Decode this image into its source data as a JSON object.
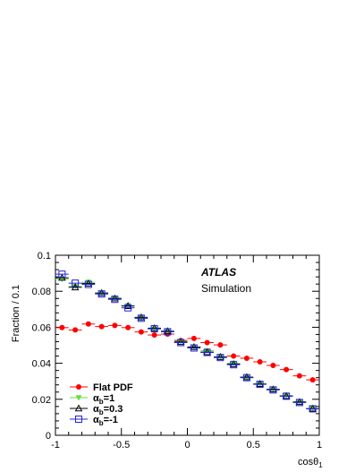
{
  "chart_data": {
    "type": "scatter",
    "xlabel": "cosθ",
    "xlabel_sub": "1",
    "ylabel": "Fraction / 0.1",
    "xlim": [
      -1,
      1
    ],
    "ylim": [
      0,
      0.1
    ],
    "x_ticks": [
      "-1",
      "-0.5",
      "0",
      "0.5",
      "1"
    ],
    "x_tick_values": [
      -1,
      -0.5,
      0,
      0.5,
      1
    ],
    "y_ticks": [
      "0",
      "0.02",
      "0.04",
      "0.06",
      "0.08",
      "0.1"
    ],
    "y_tick_values": [
      0,
      0.02,
      0.04,
      0.06,
      0.08,
      0.1
    ],
    "annotations": {
      "experiment": "ATLAS",
      "label": "Simulation"
    },
    "legend_placement": "bottom-left",
    "x": [
      -0.95,
      -0.85,
      -0.75,
      -0.65,
      -0.55,
      -0.45,
      -0.35,
      -0.25,
      -0.15,
      -0.05,
      0.05,
      0.15,
      0.25,
      0.35,
      0.45,
      0.55,
      0.65,
      0.75,
      0.85,
      0.95
    ],
    "series": [
      {
        "name": "Flat PDF",
        "legend_label": "Flat PDF",
        "marker": "circle",
        "color": "#ff0000",
        "values": [
          0.0598,
          0.0585,
          0.0618,
          0.0604,
          0.061,
          0.0598,
          0.0574,
          0.0557,
          0.0562,
          0.0527,
          0.0538,
          0.0515,
          0.0502,
          0.044,
          0.0428,
          0.0408,
          0.0388,
          0.0365,
          0.033,
          0.0308
        ]
      },
      {
        "name": "αb=1",
        "legend_label": "α",
        "legend_sub": "b",
        "legend_suffix": "=1",
        "marker": "triangle-down",
        "color": "#66dd44",
        "values": [
          0.0868,
          0.0827,
          0.085,
          0.079,
          0.0762,
          0.072,
          0.065,
          0.059,
          0.0575,
          0.0522,
          0.049,
          0.047,
          0.0435,
          0.04,
          0.032,
          0.0285,
          0.0255,
          0.022,
          0.0185,
          0.0148
        ]
      },
      {
        "name": "αb=0.3",
        "legend_label": "α",
        "legend_sub": "b",
        "legend_suffix": "=0.3",
        "marker": "triangle-up",
        "color": "#000000",
        "values": [
          0.0875,
          0.0822,
          0.0843,
          0.079,
          0.076,
          0.0718,
          0.0655,
          0.0595,
          0.0578,
          0.0518,
          0.049,
          0.0462,
          0.0435,
          0.0395,
          0.0323,
          0.0285,
          0.0255,
          0.0218,
          0.0185,
          0.0148
        ]
      },
      {
        "name": "αb=-1",
        "legend_label": "α",
        "legend_sub": "b",
        "legend_suffix": "=-1",
        "marker": "square-open",
        "color": "#2222dd",
        "values": [
          0.0895,
          0.0845,
          0.0838,
          0.0785,
          0.0755,
          0.0708,
          0.065,
          0.0592,
          0.0575,
          0.0515,
          0.0485,
          0.046,
          0.0432,
          0.0392,
          0.032,
          0.0283,
          0.0252,
          0.0217,
          0.0182,
          0.0147
        ]
      }
    ]
  }
}
